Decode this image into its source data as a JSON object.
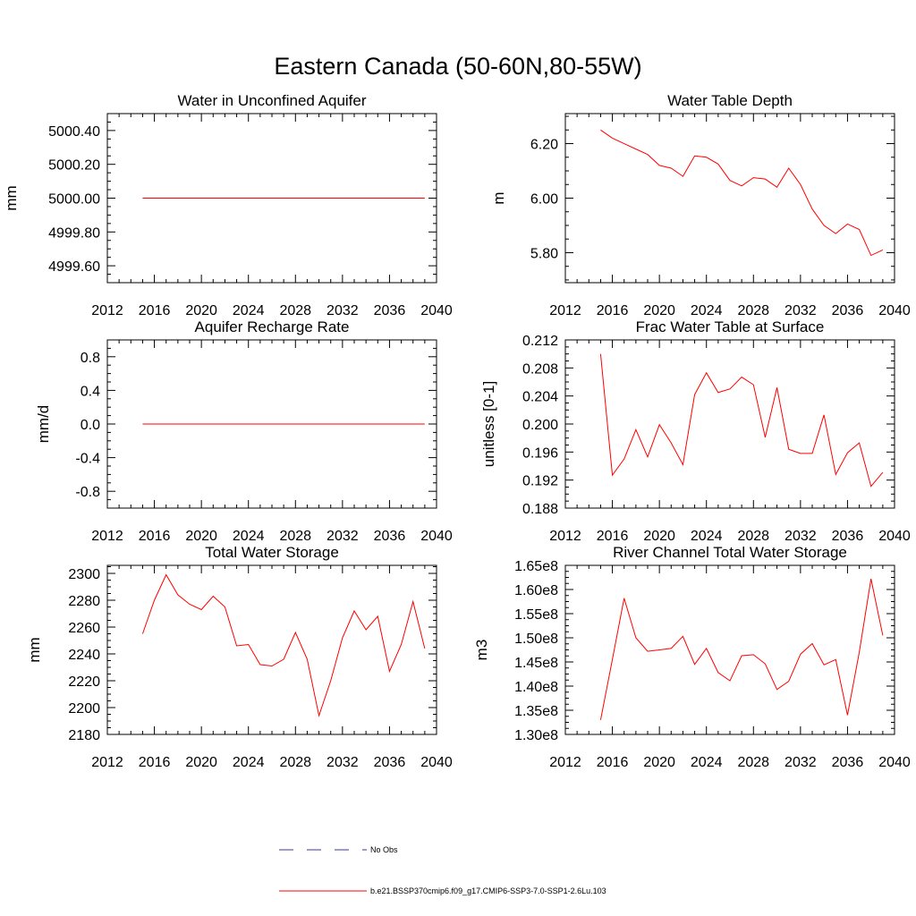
{
  "figure_title": "Eastern Canada (50-60N,80-55W)",
  "legend": {
    "items": [
      {
        "label": "No Obs",
        "color": "#3a3a9a",
        "style": "dashed"
      },
      {
        "label": "b.e21.BSSP370cmip6.f09_g17.CMIP6-SSP3-7.0-SSP1-2.6Lu.103",
        "color": "#ff0000",
        "style": "solid"
      }
    ]
  },
  "chart_data": [
    {
      "type": "line",
      "title": "Water in Unconfined Aquifer",
      "xlabel": "",
      "ylabel": "mm",
      "xlim": [
        2012,
        2040
      ],
      "ylim": [
        4999.5,
        5000.5
      ],
      "xticks": [
        2012,
        2016,
        2020,
        2024,
        2028,
        2032,
        2036,
        2040
      ],
      "yticks": [
        4999.6,
        4999.8,
        5000.0,
        5000.2,
        5000.4
      ],
      "ytick_labels": [
        "4999.60",
        "4999.80",
        "5000.00",
        "5000.20",
        "5000.40"
      ],
      "x": [
        2015,
        2016,
        2017,
        2018,
        2019,
        2020,
        2021,
        2022,
        2023,
        2024,
        2025,
        2026,
        2027,
        2028,
        2029,
        2030,
        2031,
        2032,
        2033,
        2034,
        2035,
        2036,
        2037,
        2038,
        2039
      ],
      "series": [
        {
          "color": "#ff0000",
          "values": [
            5000.0,
            5000.0,
            5000.0,
            5000.0,
            5000.0,
            5000.0,
            5000.0,
            5000.0,
            5000.0,
            5000.0,
            5000.0,
            5000.0,
            5000.0,
            5000.0,
            5000.0,
            5000.0,
            5000.0,
            5000.0,
            5000.0,
            5000.0,
            5000.0,
            5000.0,
            5000.0,
            5000.0,
            5000.0
          ]
        }
      ]
    },
    {
      "type": "line",
      "title": "Water Table Depth",
      "xlabel": "",
      "ylabel": "m",
      "xlim": [
        2012,
        2040
      ],
      "ylim": [
        5.69,
        6.31
      ],
      "xticks": [
        2012,
        2016,
        2020,
        2024,
        2028,
        2032,
        2036,
        2040
      ],
      "yticks": [
        5.8,
        6.0,
        6.2
      ],
      "ytick_labels": [
        "5.80",
        "6.00",
        "6.20"
      ],
      "x": [
        2015,
        2016,
        2017,
        2018,
        2019,
        2020,
        2021,
        2022,
        2023,
        2024,
        2025,
        2026,
        2027,
        2028,
        2029,
        2030,
        2031,
        2032,
        2033,
        2034,
        2035,
        2036,
        2037,
        2038,
        2039
      ],
      "series": [
        {
          "color": "#ff0000",
          "values": [
            6.25,
            6.22,
            6.2,
            6.18,
            6.16,
            6.12,
            6.11,
            6.08,
            6.155,
            6.15,
            6.125,
            6.065,
            6.045,
            6.075,
            6.07,
            6.04,
            6.11,
            6.05,
            5.96,
            5.9,
            5.87,
            5.905,
            5.885,
            5.79,
            5.81
          ]
        }
      ]
    },
    {
      "type": "line",
      "title": "Aquifer Recharge Rate",
      "xlabel": "",
      "ylabel": "mm/d",
      "xlim": [
        2012,
        2040
      ],
      "ylim": [
        -1.0,
        1.0
      ],
      "xticks": [
        2012,
        2016,
        2020,
        2024,
        2028,
        2032,
        2036,
        2040
      ],
      "yticks": [
        -0.8,
        -0.4,
        0.0,
        0.4,
        0.8
      ],
      "ytick_labels": [
        "-0.8",
        "-0.4",
        "0.0",
        "0.4",
        "0.8"
      ],
      "x": [
        2015,
        2016,
        2017,
        2018,
        2019,
        2020,
        2021,
        2022,
        2023,
        2024,
        2025,
        2026,
        2027,
        2028,
        2029,
        2030,
        2031,
        2032,
        2033,
        2034,
        2035,
        2036,
        2037,
        2038,
        2039
      ],
      "series": [
        {
          "color": "#ff0000",
          "values": [
            0,
            0,
            0,
            0,
            0,
            0,
            0,
            0,
            0,
            0,
            0,
            0,
            0,
            0,
            0,
            0,
            0,
            0,
            0,
            0,
            0,
            0,
            0,
            0,
            0
          ]
        }
      ]
    },
    {
      "type": "line",
      "title": "Frac Water Table at Surface",
      "xlabel": "",
      "ylabel": "unitless [0-1]",
      "xlim": [
        2012,
        2040
      ],
      "ylim": [
        0.188,
        0.212
      ],
      "xticks": [
        2012,
        2016,
        2020,
        2024,
        2028,
        2032,
        2036,
        2040
      ],
      "yticks": [
        0.188,
        0.192,
        0.196,
        0.2,
        0.204,
        0.208,
        0.212
      ],
      "ytick_labels": [
        "0.188",
        "0.192",
        "0.196",
        "0.200",
        "0.204",
        "0.208",
        "0.212"
      ],
      "x": [
        2015,
        2016,
        2017,
        2018,
        2019,
        2020,
        2021,
        2022,
        2023,
        2024,
        2025,
        2026,
        2027,
        2028,
        2029,
        2030,
        2031,
        2032,
        2033,
        2034,
        2035,
        2036,
        2037,
        2038,
        2039
      ],
      "series": [
        {
          "color": "#ff0000",
          "values": [
            0.21,
            0.1927,
            0.195,
            0.1992,
            0.1953,
            0.1999,
            0.1973,
            0.1942,
            0.2042,
            0.2073,
            0.2045,
            0.205,
            0.2067,
            0.2056,
            0.1981,
            0.2052,
            0.1964,
            0.1958,
            0.1958,
            0.2013,
            0.1928,
            0.1959,
            0.1973,
            0.1911,
            0.1931
          ]
        }
      ]
    },
    {
      "type": "line",
      "title": "Total Water Storage",
      "xlabel": "",
      "ylabel": "mm",
      "xlim": [
        2012,
        2040
      ],
      "ylim": [
        2180,
        2306
      ],
      "xticks": [
        2012,
        2016,
        2020,
        2024,
        2028,
        2032,
        2036,
        2040
      ],
      "yticks": [
        2180,
        2200,
        2220,
        2240,
        2260,
        2280,
        2300
      ],
      "ytick_labels": [
        "2180",
        "2200",
        "2220",
        "2240",
        "2260",
        "2280",
        "2300"
      ],
      "x": [
        2015,
        2016,
        2017,
        2018,
        2019,
        2020,
        2021,
        2022,
        2023,
        2024,
        2025,
        2026,
        2027,
        2028,
        2029,
        2030,
        2031,
        2032,
        2033,
        2034,
        2035,
        2036,
        2037,
        2038,
        2039
      ],
      "series": [
        {
          "color": "#ff0000",
          "values": [
            2255,
            2280,
            2299,
            2284,
            2277,
            2273,
            2283,
            2275,
            2246,
            2247,
            2232,
            2231,
            2236,
            2256,
            2236,
            2194,
            2220,
            2252,
            2272,
            2258,
            2268,
            2227,
            2247,
            2279,
            2244
          ]
        }
      ]
    },
    {
      "type": "line",
      "title": "River Channel Total Water Storage",
      "xlabel": "",
      "ylabel": "m3",
      "xlim": [
        2012,
        2040
      ],
      "ylim": [
        130000000.0,
        165000000.0
      ],
      "xticks": [
        2012,
        2016,
        2020,
        2024,
        2028,
        2032,
        2036,
        2040
      ],
      "yticks": [
        130000000.0,
        135000000.0,
        140000000.0,
        145000000.0,
        150000000.0,
        155000000.0,
        160000000.0,
        165000000.0
      ],
      "ytick_labels": [
        "1.30e8",
        "1.35e8",
        "1.40e8",
        "1.45e8",
        "1.50e8",
        "1.55e8",
        "1.60e8",
        "1.65e8"
      ],
      "x": [
        2015,
        2016,
        2017,
        2018,
        2019,
        2020,
        2021,
        2022,
        2023,
        2024,
        2025,
        2026,
        2027,
        2028,
        2029,
        2030,
        2031,
        2032,
        2033,
        2034,
        2035,
        2036,
        2037,
        2038,
        2039
      ],
      "series": [
        {
          "color": "#ff0000",
          "values": [
            133000000.0,
            145500000.0,
            158200000.0,
            150000000.0,
            147200000.0,
            147500000.0,
            147800000.0,
            150300000.0,
            144500000.0,
            147800000.0,
            142800000.0,
            141100000.0,
            146300000.0,
            146500000.0,
            144600000.0,
            139300000.0,
            141000000.0,
            146600000.0,
            148800000.0,
            144400000.0,
            145500000.0,
            134000000.0,
            147000000.0,
            162200000.0,
            150500000.0
          ]
        }
      ]
    }
  ]
}
